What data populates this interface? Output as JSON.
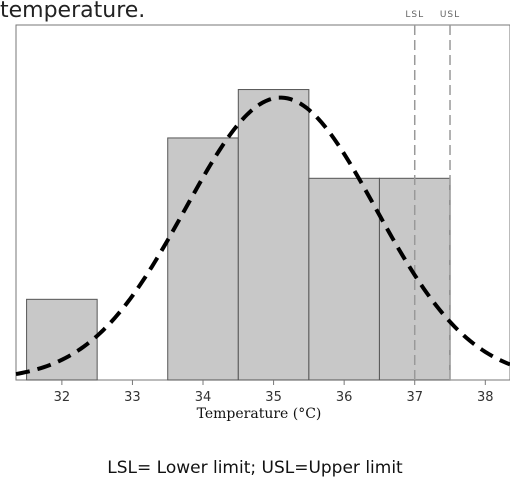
{
  "caption_fragment": "temperature.",
  "footnote": "LSL= Lower limit; USL=Upper limit",
  "colors": {
    "bar_fill": "#c8c8c8",
    "bar_stroke": "#555555",
    "curve": "#000000",
    "limit_line": "#999999",
    "frame": "#777777"
  },
  "chart_data": {
    "type": "bar",
    "xlabel": "Temperature (°C)",
    "ylabel": "",
    "x_ticks": [
      32,
      33,
      34,
      35,
      36,
      37,
      38
    ],
    "xlim": [
      31.35,
      38.35
    ],
    "bins": [
      {
        "start": 31.5,
        "end": 32.5,
        "value": 1
      },
      {
        "start": 32.5,
        "end": 33.5,
        "value": 0
      },
      {
        "start": 33.5,
        "end": 34.5,
        "value": 3
      },
      {
        "start": 34.5,
        "end": 35.5,
        "value": 3.6
      },
      {
        "start": 35.5,
        "end": 36.5,
        "value": 2.5
      },
      {
        "start": 36.5,
        "end": 37.5,
        "value": 2.5
      }
    ],
    "ylim": [
      0,
      4.4
    ],
    "fit_curve": {
      "type": "normal",
      "mean": 35.1,
      "sd": 1.35,
      "peak": 3.5
    },
    "limits": [
      {
        "label": "LSL",
        "x": 37.0
      },
      {
        "label": "USL",
        "x": 37.5
      }
    ]
  }
}
